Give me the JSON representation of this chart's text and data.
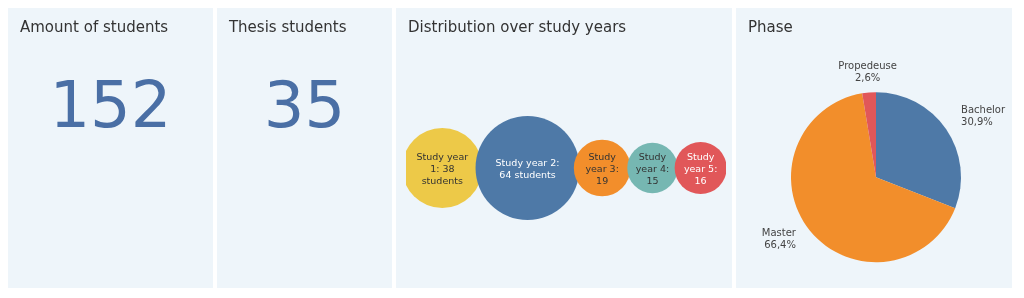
{
  "chart_data": [
    {
      "type": "other",
      "title": "Amount of students",
      "annotations": [
        "152"
      ]
    },
    {
      "type": "other",
      "title": "Thesis students",
      "annotations": [
        "35"
      ]
    },
    {
      "type": "other",
      "title": "Distribution over study years",
      "values": [
        38,
        64,
        19,
        15,
        16
      ],
      "colors": [
        "#edc948",
        "#4e79a7",
        "#f28e2b",
        "#76b7b2",
        "#e15759"
      ],
      "value_labels": [
        "Study year 1: 38 students",
        "Study year 2: 64 students",
        "Study year 3: 19",
        "Study year 4: 15",
        "Study year 5: 16"
      ]
    },
    {
      "type": "pie",
      "title": "Phase",
      "categories": [
        "Bachelor",
        "Master",
        "Propedeuse"
      ],
      "values": [
        30.9,
        66.4,
        2.6
      ],
      "colors": [
        "#4e79a7",
        "#f28e2b",
        "#e15759"
      ],
      "value_labels": [
        "30,9%",
        "66,4%",
        "2,6%"
      ]
    }
  ]
}
